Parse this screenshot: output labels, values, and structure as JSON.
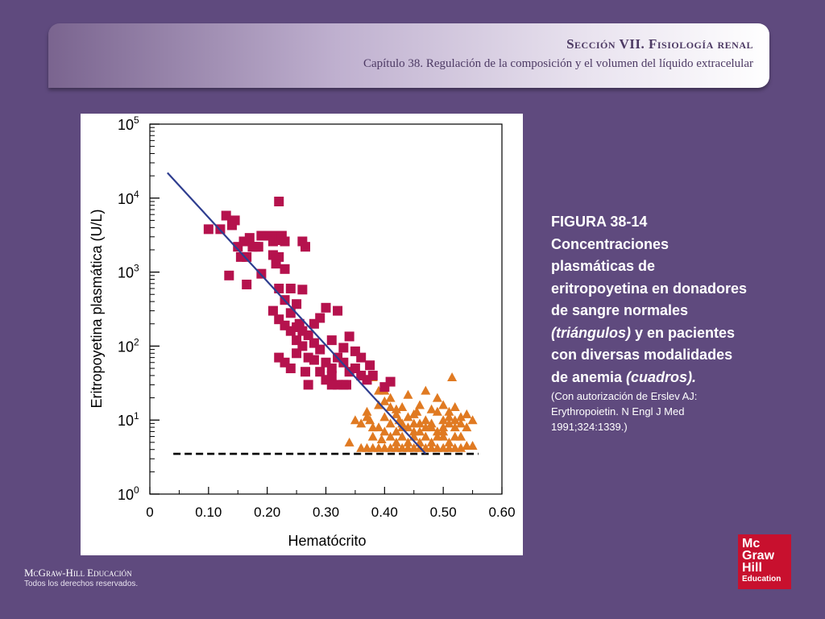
{
  "header": {
    "section": "Sección VII.   Fisiología renal",
    "chapter": "Capítulo 38. Regulación de la composición y el volumen del líquido extracelular"
  },
  "caption": {
    "figure_label": "FIGURA 38-14",
    "text_before_triangles": "Concentraciones plasmáticas de eritropoyetina en donadores de sangre normales ",
    "triangles_label": "(triángulos)",
    "text_between": " y en pacientes con diversas  modalidades de anemia ",
    "squares_label": "(cuadros).",
    "credit": "(Con autorización de Erslev AJ: Erythropoietin. N Engl J Med 1991;324:1339.)"
  },
  "footer": {
    "publisher": "McGraw-Hill Educación",
    "rights": "Todos los derechos reservados."
  },
  "logo": {
    "line1": "Mc",
    "line2": "Graw",
    "line3": "Hill",
    "line4": "Education"
  },
  "colors": {
    "background": "#5f4a7e",
    "squares": "#b5124d",
    "triangles": "#e07a22",
    "regression": "#2e3d8f"
  },
  "chart_data": {
    "type": "scatter",
    "xlabel": "Hematócrito",
    "ylabel": "Eritropoyetina plasmática (U/L)",
    "x_ticks": [
      "0",
      "0.10",
      "0.20",
      "0.30",
      "0.40",
      "0.50",
      "0.60"
    ],
    "y_ticks": [
      {
        "base": "10",
        "exp": "0"
      },
      {
        "base": "10",
        "exp": "1"
      },
      {
        "base": "10",
        "exp": "2"
      },
      {
        "base": "10",
        "exp": "3"
      },
      {
        "base": "10",
        "exp": "4"
      },
      {
        "base": "10",
        "exp": "5"
      }
    ],
    "x_range": [
      0,
      0.6
    ],
    "y_scale": "log",
    "y_range": [
      1,
      100000
    ],
    "grid": false,
    "reference_line": {
      "y": 3.5,
      "x_range": [
        0.04,
        0.56
      ],
      "style": "dashed"
    },
    "regression_line": {
      "points": [
        [
          0.03,
          22000
        ],
        [
          0.47,
          3.5
        ]
      ]
    },
    "series": [
      {
        "marker": "square",
        "points": [
          [
            0.1,
            3800
          ],
          [
            0.12,
            3800
          ],
          [
            0.13,
            5800
          ],
          [
            0.14,
            4300
          ],
          [
            0.145,
            5000
          ],
          [
            0.15,
            2200
          ],
          [
            0.155,
            1600
          ],
          [
            0.16,
            2600
          ],
          [
            0.165,
            1600
          ],
          [
            0.17,
            2900
          ],
          [
            0.175,
            2200
          ],
          [
            0.18,
            2200
          ],
          [
            0.185,
            2200
          ],
          [
            0.19,
            3100
          ],
          [
            0.2,
            3100
          ],
          [
            0.21,
            2600
          ],
          [
            0.215,
            3100
          ],
          [
            0.22,
            2700
          ],
          [
            0.225,
            3100
          ],
          [
            0.23,
            2600
          ],
          [
            0.21,
            1700
          ],
          [
            0.22,
            1600
          ],
          [
            0.215,
            1300
          ],
          [
            0.23,
            1100
          ],
          [
            0.22,
            9000
          ],
          [
            0.26,
            2600
          ],
          [
            0.265,
            2200
          ],
          [
            0.135,
            900
          ],
          [
            0.165,
            680
          ],
          [
            0.19,
            950
          ],
          [
            0.22,
            600
          ],
          [
            0.23,
            420
          ],
          [
            0.24,
            600
          ],
          [
            0.25,
            370
          ],
          [
            0.26,
            580
          ],
          [
            0.21,
            300
          ],
          [
            0.22,
            230
          ],
          [
            0.23,
            190
          ],
          [
            0.24,
            280
          ],
          [
            0.25,
            180
          ],
          [
            0.255,
            200
          ],
          [
            0.26,
            160
          ],
          [
            0.27,
            140
          ],
          [
            0.28,
            200
          ],
          [
            0.29,
            240
          ],
          [
            0.3,
            330
          ],
          [
            0.31,
            120
          ],
          [
            0.32,
            300
          ],
          [
            0.33,
            95
          ],
          [
            0.34,
            135
          ],
          [
            0.35,
            85
          ],
          [
            0.24,
            160
          ],
          [
            0.25,
            120
          ],
          [
            0.26,
            100
          ],
          [
            0.27,
            70
          ],
          [
            0.28,
            110
          ],
          [
            0.29,
            90
          ],
          [
            0.3,
            60
          ],
          [
            0.31,
            50
          ],
          [
            0.32,
            70
          ],
          [
            0.33,
            60
          ],
          [
            0.34,
            45
          ],
          [
            0.36,
            70
          ],
          [
            0.375,
            55
          ],
          [
            0.22,
            70
          ],
          [
            0.24,
            50
          ],
          [
            0.265,
            45
          ],
          [
            0.29,
            45
          ],
          [
            0.31,
            40
          ],
          [
            0.33,
            30
          ],
          [
            0.3,
            35
          ],
          [
            0.36,
            40
          ],
          [
            0.27,
            30
          ],
          [
            0.31,
            30
          ],
          [
            0.32,
            30
          ],
          [
            0.335,
            30
          ],
          [
            0.41,
            33
          ],
          [
            0.4,
            28
          ],
          [
            0.38,
            40
          ],
          [
            0.37,
            35
          ],
          [
            0.23,
            60
          ],
          [
            0.25,
            80
          ],
          [
            0.28,
            65
          ],
          [
            0.35,
            50
          ]
        ]
      },
      {
        "marker": "triangle",
        "points": [
          [
            0.36,
            9
          ],
          [
            0.37,
            13
          ],
          [
            0.38,
            8
          ],
          [
            0.39,
            16
          ],
          [
            0.4,
            11
          ],
          [
            0.41,
            20
          ],
          [
            0.42,
            14
          ],
          [
            0.43,
            9
          ],
          [
            0.44,
            22
          ],
          [
            0.45,
            12
          ],
          [
            0.46,
            16
          ],
          [
            0.47,
            10
          ],
          [
            0.48,
            9
          ],
          [
            0.49,
            13
          ],
          [
            0.5,
            8
          ],
          [
            0.51,
            11
          ],
          [
            0.38,
            6
          ],
          [
            0.39,
            8
          ],
          [
            0.4,
            7
          ],
          [
            0.41,
            9
          ],
          [
            0.42,
            7
          ],
          [
            0.43,
            6
          ],
          [
            0.44,
            8
          ],
          [
            0.45,
            6
          ],
          [
            0.46,
            7
          ],
          [
            0.47,
            6
          ],
          [
            0.48,
            5
          ],
          [
            0.49,
            6
          ],
          [
            0.5,
            7
          ],
          [
            0.51,
            5
          ],
          [
            0.52,
            6
          ],
          [
            0.53,
            11
          ],
          [
            0.54,
            12
          ],
          [
            0.55,
            10
          ],
          [
            0.36,
            4.2
          ],
          [
            0.37,
            4.2
          ],
          [
            0.38,
            4.2
          ],
          [
            0.39,
            4.2
          ],
          [
            0.4,
            4.2
          ],
          [
            0.41,
            4.2
          ],
          [
            0.42,
            4.2
          ],
          [
            0.43,
            4.2
          ],
          [
            0.44,
            4.2
          ],
          [
            0.45,
            4.2
          ],
          [
            0.46,
            4.2
          ],
          [
            0.47,
            4.2
          ],
          [
            0.48,
            4.2
          ],
          [
            0.49,
            4.2
          ],
          [
            0.5,
            4.2
          ],
          [
            0.51,
            4.2
          ],
          [
            0.52,
            4.2
          ],
          [
            0.53,
            4.2
          ],
          [
            0.34,
            5
          ],
          [
            0.35,
            10
          ],
          [
            0.37,
            11
          ],
          [
            0.39,
            25
          ],
          [
            0.4,
            25
          ],
          [
            0.41,
            15
          ],
          [
            0.42,
            12
          ],
          [
            0.44,
            5
          ],
          [
            0.46,
            9
          ],
          [
            0.48,
            8
          ],
          [
            0.49,
            20
          ],
          [
            0.5,
            16
          ],
          [
            0.52,
            15
          ],
          [
            0.53,
            9
          ],
          [
            0.38,
            38
          ],
          [
            0.4,
            18
          ],
          [
            0.43,
            15
          ],
          [
            0.45,
            9
          ],
          [
            0.47,
            25
          ],
          [
            0.48,
            14
          ],
          [
            0.5,
            6
          ],
          [
            0.51,
            9
          ],
          [
            0.52,
            10
          ],
          [
            0.54,
            8
          ],
          [
            0.44,
            11
          ],
          [
            0.46,
            5
          ],
          [
            0.42,
            5
          ],
          [
            0.41,
            6
          ],
          [
            0.43,
            8
          ],
          [
            0.45,
            7
          ],
          [
            0.47,
            8
          ],
          [
            0.49,
            7
          ],
          [
            0.5,
            10
          ],
          [
            0.51,
            13
          ],
          [
            0.52,
            8
          ],
          [
            0.53,
            6
          ],
          [
            0.54,
            4.5
          ],
          [
            0.55,
            4.5
          ],
          [
            0.515,
            38
          ],
          [
            0.375,
            10
          ],
          [
            0.395,
            5.5
          ],
          [
            0.425,
            10
          ],
          [
            0.455,
            13
          ]
        ]
      }
    ]
  }
}
